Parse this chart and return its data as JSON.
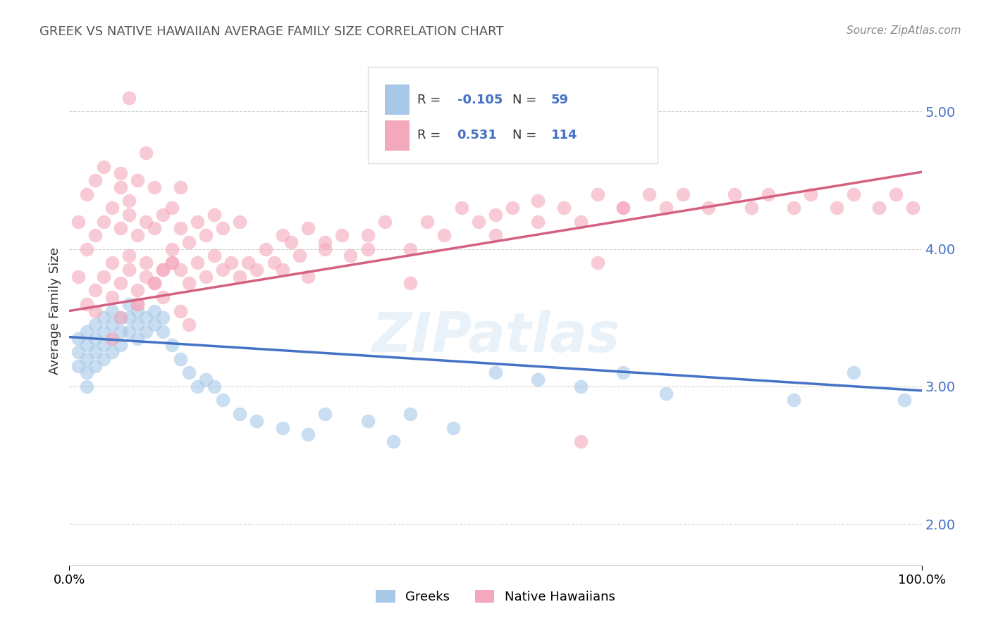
{
  "title": "GREEK VS NATIVE HAWAIIAN AVERAGE FAMILY SIZE CORRELATION CHART",
  "source": "Source: ZipAtlas.com",
  "ylabel": "Average Family Size",
  "xlim": [
    0.0,
    1.0
  ],
  "ylim": [
    1.7,
    5.4
  ],
  "yticks": [
    2.0,
    3.0,
    4.0,
    5.0
  ],
  "xticks": [
    0.0,
    1.0
  ],
  "xticklabels": [
    "0.0%",
    "100.0%"
  ],
  "greek_color": "#a8c8e8",
  "native_color": "#f4a8bc",
  "greek_R": -0.105,
  "greek_N": 59,
  "native_R": 0.531,
  "native_N": 114,
  "greek_line_color": "#4472c4",
  "native_line_color": "#d46080",
  "watermark": "ZIPatlas",
  "background_color": "#ffffff",
  "greek_line_x0": 0.0,
  "greek_line_x1": 1.0,
  "greek_line_y0": 3.36,
  "greek_line_y1": 2.97,
  "native_line_x0": 0.0,
  "native_line_x1": 1.0,
  "native_line_y0": 3.55,
  "native_line_y1": 4.56,
  "greek_x": [
    0.01,
    0.01,
    0.01,
    0.02,
    0.02,
    0.02,
    0.02,
    0.02,
    0.03,
    0.03,
    0.03,
    0.03,
    0.04,
    0.04,
    0.04,
    0.04,
    0.05,
    0.05,
    0.05,
    0.05,
    0.06,
    0.06,
    0.06,
    0.07,
    0.07,
    0.07,
    0.08,
    0.08,
    0.08,
    0.09,
    0.09,
    0.1,
    0.1,
    0.11,
    0.11,
    0.12,
    0.13,
    0.14,
    0.15,
    0.16,
    0.17,
    0.18,
    0.2,
    0.22,
    0.25,
    0.28,
    0.3,
    0.35,
    0.38,
    0.4,
    0.45,
    0.5,
    0.55,
    0.6,
    0.65,
    0.7,
    0.85,
    0.92,
    0.98
  ],
  "greek_y": [
    3.35,
    3.25,
    3.15,
    3.4,
    3.3,
    3.2,
    3.1,
    3.0,
    3.45,
    3.35,
    3.25,
    3.15,
    3.5,
    3.4,
    3.3,
    3.2,
    3.55,
    3.45,
    3.35,
    3.25,
    3.5,
    3.4,
    3.3,
    3.6,
    3.5,
    3.4,
    3.55,
    3.45,
    3.35,
    3.5,
    3.4,
    3.55,
    3.45,
    3.5,
    3.4,
    3.3,
    3.2,
    3.1,
    3.0,
    3.05,
    3.0,
    2.9,
    2.8,
    2.75,
    2.7,
    2.65,
    2.8,
    2.75,
    2.6,
    2.8,
    2.7,
    3.1,
    3.05,
    3.0,
    3.1,
    2.95,
    2.9,
    3.1,
    2.9
  ],
  "native_x": [
    0.01,
    0.01,
    0.02,
    0.02,
    0.02,
    0.03,
    0.03,
    0.03,
    0.03,
    0.04,
    0.04,
    0.04,
    0.05,
    0.05,
    0.05,
    0.06,
    0.06,
    0.06,
    0.06,
    0.07,
    0.07,
    0.07,
    0.07,
    0.08,
    0.08,
    0.08,
    0.08,
    0.09,
    0.09,
    0.09,
    0.1,
    0.1,
    0.1,
    0.11,
    0.11,
    0.11,
    0.12,
    0.12,
    0.12,
    0.13,
    0.13,
    0.13,
    0.14,
    0.14,
    0.15,
    0.15,
    0.16,
    0.16,
    0.17,
    0.17,
    0.18,
    0.18,
    0.19,
    0.2,
    0.2,
    0.21,
    0.22,
    0.23,
    0.24,
    0.25,
    0.26,
    0.27,
    0.28,
    0.3,
    0.32,
    0.33,
    0.35,
    0.37,
    0.4,
    0.42,
    0.44,
    0.46,
    0.48,
    0.5,
    0.52,
    0.55,
    0.58,
    0.6,
    0.62,
    0.65,
    0.68,
    0.7,
    0.72,
    0.75,
    0.78,
    0.8,
    0.82,
    0.85,
    0.87,
    0.9,
    0.92,
    0.95,
    0.97,
    0.99,
    0.05,
    0.08,
    0.1,
    0.12,
    0.14,
    0.06,
    0.07,
    0.09,
    0.11,
    0.13,
    0.6,
    0.65,
    0.4,
    0.5,
    0.3,
    0.35,
    0.25,
    0.28,
    0.55,
    0.62
  ],
  "native_y": [
    3.8,
    4.2,
    3.6,
    4.0,
    4.4,
    3.7,
    4.1,
    4.5,
    3.55,
    3.8,
    4.2,
    4.6,
    3.9,
    4.3,
    3.65,
    3.75,
    4.15,
    4.55,
    3.5,
    3.85,
    4.25,
    3.95,
    4.35,
    3.7,
    4.1,
    4.5,
    3.6,
    3.8,
    4.2,
    3.9,
    3.75,
    4.15,
    4.45,
    3.85,
    4.25,
    3.65,
    3.9,
    4.3,
    4.0,
    3.85,
    4.15,
    4.45,
    3.75,
    4.05,
    3.9,
    4.2,
    3.8,
    4.1,
    3.95,
    4.25,
    3.85,
    4.15,
    3.9,
    3.8,
    4.2,
    3.9,
    3.85,
    4.0,
    3.9,
    3.85,
    4.05,
    3.95,
    4.15,
    4.0,
    4.1,
    3.95,
    4.1,
    4.2,
    4.0,
    4.2,
    4.1,
    4.3,
    4.2,
    4.1,
    4.3,
    4.2,
    4.3,
    4.2,
    4.4,
    4.3,
    4.4,
    4.3,
    4.4,
    4.3,
    4.4,
    4.3,
    4.4,
    4.3,
    4.4,
    4.3,
    4.4,
    4.3,
    4.4,
    4.3,
    3.35,
    3.6,
    3.75,
    3.9,
    3.45,
    4.45,
    5.1,
    4.7,
    3.85,
    3.55,
    2.6,
    4.3,
    3.75,
    4.25,
    4.05,
    4.0,
    4.1,
    3.8,
    4.35,
    3.9
  ]
}
